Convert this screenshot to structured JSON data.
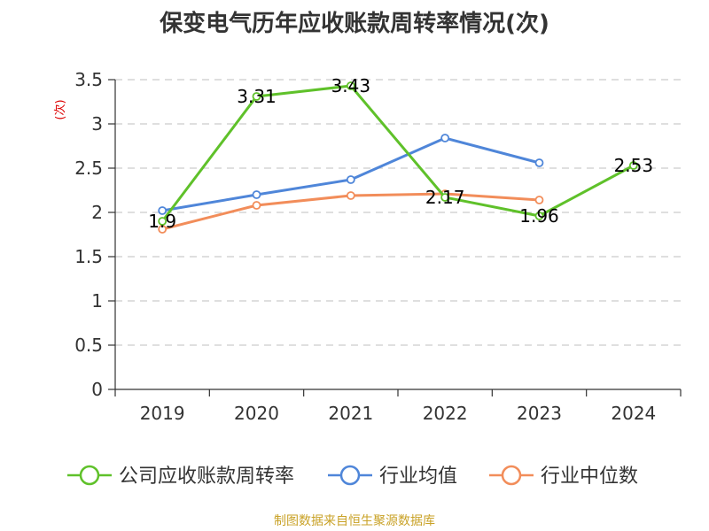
{
  "chart_data": {
    "type": "line",
    "title": "保变电气历年应收账款周转率情况(次)",
    "ylabel": "(次)",
    "xlabel": "",
    "categories": [
      "2019",
      "2020",
      "2021",
      "2022",
      "2023",
      "2024"
    ],
    "ylim": [
      0,
      3.5
    ],
    "yticks": [
      0,
      0.5,
      1,
      1.5,
      2,
      2.5,
      3,
      3.5
    ],
    "grid": true,
    "legend_position": "bottom",
    "series": [
      {
        "name": "公司应收账款周转率",
        "color": "#5fc12a",
        "values": [
          1.9,
          3.31,
          3.43,
          2.17,
          1.96,
          2.53
        ],
        "labels": [
          "1.9",
          "3.31",
          "3.43",
          "2.17",
          "1.96",
          "2.53"
        ]
      },
      {
        "name": "行业均值",
        "color": "#4f86d9",
        "values": [
          2.02,
          2.2,
          2.37,
          2.84,
          2.56,
          null
        ]
      },
      {
        "name": "行业中位数",
        "color": "#f28d5a",
        "values": [
          1.81,
          2.08,
          2.19,
          2.21,
          2.14,
          null
        ]
      }
    ]
  },
  "source_note": "制图数据来自恒生聚源数据库",
  "colors": {
    "ylabel": "#dd0000",
    "source": "#c9a227",
    "axis": "#333333",
    "grid": "#cccccc"
  }
}
